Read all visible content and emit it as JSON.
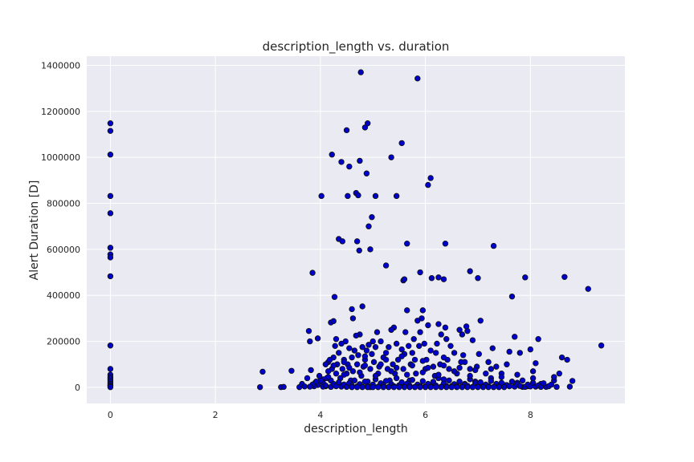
{
  "chart_data": {
    "type": "scatter",
    "title": "description_length vs. duration",
    "xlabel": "description_length",
    "ylabel": "Alert Duration [D]",
    "xlim": [
      -0.45,
      9.8
    ],
    "ylim": [
      -70000,
      1440000
    ],
    "xticks": [
      0,
      2,
      4,
      6,
      8
    ],
    "xtick_labels": [
      "0",
      "2",
      "4",
      "6",
      "8"
    ],
    "yticks": [
      0,
      200000,
      400000,
      600000,
      800000,
      1000000,
      1200000,
      1400000
    ],
    "ytick_labels": [
      "0",
      "200000",
      "400000",
      "600000",
      "800000",
      "1000000",
      "1200000",
      "1400000"
    ],
    "grid": true,
    "colors": {
      "background": "#eaeaf2",
      "grid": "#ffffff",
      "marker_fill": "#0000cc",
      "marker_edge": "#111111"
    },
    "points": [
      [
        0,
        1148000
      ],
      [
        0,
        1115000
      ],
      [
        0,
        1012000
      ],
      [
        0,
        832000
      ],
      [
        0,
        757000
      ],
      [
        0,
        607000
      ],
      [
        0,
        578000
      ],
      [
        0,
        565000
      ],
      [
        0,
        483000
      ],
      [
        0,
        182000
      ],
      [
        0,
        80000
      ],
      [
        0,
        55000
      ],
      [
        0,
        45000
      ],
      [
        0,
        38000
      ],
      [
        0,
        30000
      ],
      [
        0,
        22000
      ],
      [
        0,
        15000
      ],
      [
        0,
        9000
      ],
      [
        0,
        4000
      ],
      [
        0,
        1000
      ],
      [
        2.85,
        1000
      ],
      [
        2.9,
        68000
      ],
      [
        3.25,
        1000
      ],
      [
        3.3,
        2000
      ],
      [
        3.45,
        72000
      ],
      [
        3.6,
        1000
      ],
      [
        3.65,
        15000
      ],
      [
        3.7,
        4000
      ],
      [
        3.75,
        40000
      ],
      [
        3.78,
        245000
      ],
      [
        3.8,
        200000
      ],
      [
        3.82,
        75000
      ],
      [
        3.85,
        498000
      ],
      [
        3.9,
        20000
      ],
      [
        3.95,
        213000
      ],
      [
        4.02,
        832000
      ],
      [
        4.05,
        35000
      ],
      [
        4.1,
        5000
      ],
      [
        4.15,
        110000
      ],
      [
        4.2,
        282000
      ],
      [
        4.22,
        1012000
      ],
      [
        4.25,
        288000
      ],
      [
        4.27,
        393000
      ],
      [
        4.3,
        210000
      ],
      [
        4.35,
        645000
      ],
      [
        4.4,
        980000
      ],
      [
        4.42,
        635000
      ],
      [
        4.5,
        1118000
      ],
      [
        4.52,
        832000
      ],
      [
        4.55,
        960000
      ],
      [
        4.6,
        340000
      ],
      [
        4.62,
        300000
      ],
      [
        4.68,
        845000
      ],
      [
        4.7,
        635000
      ],
      [
        4.72,
        835000
      ],
      [
        4.74,
        595000
      ],
      [
        4.75,
        985000
      ],
      [
        4.77,
        1370000
      ],
      [
        4.8,
        352000
      ],
      [
        4.85,
        1130000
      ],
      [
        4.88,
        930000
      ],
      [
        4.9,
        1148000
      ],
      [
        4.92,
        700000
      ],
      [
        4.95,
        600000
      ],
      [
        4.98,
        740000
      ],
      [
        5.05,
        832000
      ],
      [
        5.25,
        530000
      ],
      [
        5.35,
        1000000
      ],
      [
        5.45,
        832000
      ],
      [
        5.55,
        1062000
      ],
      [
        5.58,
        465000
      ],
      [
        5.6,
        470000
      ],
      [
        5.65,
        625000
      ],
      [
        5.85,
        1343000
      ],
      [
        5.9,
        500000
      ],
      [
        6.05,
        880000
      ],
      [
        6.1,
        910000
      ],
      [
        6.12,
        475000
      ],
      [
        6.25,
        478000
      ],
      [
        6.35,
        470000
      ],
      [
        6.38,
        625000
      ],
      [
        6.85,
        505000
      ],
      [
        7.0,
        475000
      ],
      [
        7.3,
        615000
      ],
      [
        7.65,
        395000
      ],
      [
        7.9,
        478000
      ],
      [
        8.65,
        480000
      ],
      [
        9.1,
        428000
      ],
      [
        9.35,
        182000
      ],
      [
        8.7,
        120000
      ],
      [
        8.75,
        3000
      ],
      [
        8.6,
        130000
      ],
      [
        8.45,
        30000
      ],
      [
        8.3,
        2000
      ],
      [
        8.2,
        15000
      ],
      [
        8.1,
        105000
      ],
      [
        8.15,
        210000
      ],
      [
        8.05,
        70000
      ],
      [
        8.0,
        165000
      ],
      [
        7.95,
        5000
      ],
      [
        7.85,
        2000
      ],
      [
        7.8,
        150000
      ],
      [
        7.75,
        20000
      ],
      [
        7.7,
        220000
      ],
      [
        7.6,
        155000
      ],
      [
        7.55,
        100000
      ],
      [
        7.5,
        10000
      ],
      [
        7.45,
        60000
      ],
      [
        7.4,
        3000
      ],
      [
        7.35,
        90000
      ],
      [
        7.28,
        170000
      ],
      [
        7.25,
        40000
      ],
      [
        7.2,
        110000
      ],
      [
        7.1,
        5000
      ],
      [
        7.05,
        290000
      ],
      [
        7.02,
        145000
      ],
      [
        6.98,
        90000
      ],
      [
        6.95,
        25000
      ],
      [
        6.9,
        205000
      ],
      [
        6.85,
        80000
      ],
      [
        6.8,
        245000
      ],
      [
        6.78,
        265000
      ],
      [
        6.75,
        15000
      ],
      [
        6.72,
        140000
      ],
      [
        6.7,
        230000
      ],
      [
        6.68,
        110000
      ],
      [
        6.65,
        250000
      ],
      [
        6.6,
        60000
      ],
      [
        6.55,
        150000
      ],
      [
        6.5,
        5000
      ],
      [
        6.48,
        180000
      ],
      [
        6.45,
        80000
      ],
      [
        6.42,
        120000
      ],
      [
        6.4,
        210000
      ],
      [
        6.38,
        260000
      ],
      [
        6.35,
        35000
      ],
      [
        6.3,
        230000
      ],
      [
        6.28,
        100000
      ],
      [
        6.25,
        275000
      ],
      [
        6.22,
        190000
      ],
      [
        6.2,
        150000
      ],
      [
        6.18,
        50000
      ],
      [
        6.15,
        90000
      ],
      [
        6.12,
        10000
      ],
      [
        6.1,
        160000
      ],
      [
        6.05,
        270000
      ],
      [
        6.02,
        120000
      ],
      [
        6.0,
        80000
      ],
      [
        5.98,
        190000
      ],
      [
        5.95,
        335000
      ],
      [
        5.93,
        300000
      ],
      [
        5.9,
        240000
      ],
      [
        5.88,
        180000
      ],
      [
        5.85,
        290000
      ],
      [
        5.82,
        60000
      ],
      [
        5.8,
        120000
      ],
      [
        5.78,
        210000
      ],
      [
        5.75,
        150000
      ],
      [
        5.72,
        100000
      ],
      [
        5.7,
        30000
      ],
      [
        5.68,
        180000
      ],
      [
        5.65,
        335000
      ],
      [
        5.62,
        240000
      ],
      [
        5.6,
        145000
      ],
      [
        5.58,
        80000
      ],
      [
        5.55,
        165000
      ],
      [
        5.5,
        5000
      ],
      [
        5.48,
        120000
      ],
      [
        5.45,
        190000
      ],
      [
        5.42,
        60000
      ],
      [
        5.4,
        260000
      ],
      [
        5.38,
        100000
      ],
      [
        5.35,
        250000
      ],
      [
        5.32,
        30000
      ],
      [
        5.3,
        175000
      ],
      [
        5.28,
        80000
      ],
      [
        5.25,
        150000
      ],
      [
        5.2,
        130000
      ],
      [
        5.18,
        10000
      ],
      [
        5.15,
        200000
      ],
      [
        5.12,
        90000
      ],
      [
        5.1,
        60000
      ],
      [
        5.08,
        240000
      ],
      [
        5.05,
        175000
      ],
      [
        5.02,
        110000
      ],
      [
        5.0,
        200000
      ],
      [
        4.98,
        145000
      ],
      [
        4.95,
        80000
      ],
      [
        4.92,
        185000
      ],
      [
        4.9,
        25000
      ],
      [
        4.88,
        160000
      ],
      [
        4.85,
        120000
      ],
      [
        4.82,
        90000
      ],
      [
        4.8,
        175000
      ],
      [
        4.78,
        50000
      ],
      [
        4.75,
        230000
      ],
      [
        4.72,
        140000
      ],
      [
        4.7,
        100000
      ],
      [
        4.68,
        225000
      ],
      [
        4.65,
        160000
      ],
      [
        4.62,
        70000
      ],
      [
        4.6,
        130000
      ],
      [
        4.58,
        30000
      ],
      [
        4.55,
        170000
      ],
      [
        4.52,
        100000
      ],
      [
        4.5,
        60000
      ],
      [
        4.48,
        200000
      ],
      [
        4.45,
        120000
      ],
      [
        4.42,
        80000
      ],
      [
        4.4,
        190000
      ],
      [
        4.38,
        40000
      ],
      [
        4.35,
        150000
      ],
      [
        4.32,
        100000
      ],
      [
        4.3,
        60000
      ],
      [
        4.28,
        180000
      ],
      [
        4.25,
        130000
      ],
      [
        4.22,
        80000
      ],
      [
        4.2,
        30000
      ],
      [
        4.18,
        120000
      ],
      [
        4.15,
        70000
      ],
      [
        4.12,
        40000
      ],
      [
        4.1,
        100000
      ],
      [
        4.05,
        20000
      ],
      [
        4.0,
        30000
      ],
      [
        3.98,
        50000
      ],
      [
        3.95,
        10000
      ],
      [
        3.92,
        25000
      ],
      [
        3.88,
        5000
      ],
      [
        3.85,
        12000
      ],
      [
        3.8,
        3000
      ],
      [
        4.05,
        3000
      ],
      [
        4.1,
        8000
      ],
      [
        4.2,
        2000
      ],
      [
        4.25,
        15000
      ],
      [
        4.3,
        5000
      ],
      [
        4.35,
        22000
      ],
      [
        4.4,
        3000
      ],
      [
        4.45,
        12000
      ],
      [
        4.5,
        2000
      ],
      [
        4.55,
        18000
      ],
      [
        4.6,
        7000
      ],
      [
        4.65,
        30000
      ],
      [
        4.7,
        4000
      ],
      [
        4.75,
        14000
      ],
      [
        4.8,
        2000
      ],
      [
        4.85,
        25000
      ],
      [
        4.9,
        6000
      ],
      [
        4.95,
        1000
      ],
      [
        5.0,
        12000
      ],
      [
        5.05,
        35000
      ],
      [
        5.1,
        3000
      ],
      [
        5.15,
        18000
      ],
      [
        5.2,
        8000
      ],
      [
        5.25,
        28000
      ],
      [
        5.3,
        2000
      ],
      [
        5.35,
        14000
      ],
      [
        5.4,
        5000
      ],
      [
        5.45,
        40000
      ],
      [
        5.5,
        9000
      ],
      [
        5.55,
        22000
      ],
      [
        5.6,
        3000
      ],
      [
        5.65,
        16000
      ],
      [
        5.7,
        7000
      ],
      [
        5.75,
        32000
      ],
      [
        5.8,
        2000
      ],
      [
        5.85,
        12000
      ],
      [
        5.9,
        6000
      ],
      [
        5.95,
        27000
      ],
      [
        6.0,
        4000
      ],
      [
        6.05,
        15000
      ],
      [
        6.1,
        2000
      ],
      [
        6.15,
        24000
      ],
      [
        6.2,
        8000
      ],
      [
        6.25,
        40000
      ],
      [
        6.3,
        3000
      ],
      [
        6.35,
        17000
      ],
      [
        6.4,
        6000
      ],
      [
        6.45,
        30000
      ],
      [
        6.5,
        2000
      ],
      [
        6.55,
        14000
      ],
      [
        6.6,
        5000
      ],
      [
        6.65,
        25000
      ],
      [
        6.7,
        3000
      ],
      [
        6.75,
        12000
      ],
      [
        6.8,
        7000
      ],
      [
        6.85,
        35000
      ],
      [
        6.9,
        2000
      ],
      [
        6.95,
        18000
      ],
      [
        7.0,
        5000
      ],
      [
        7.05,
        22000
      ],
      [
        7.1,
        3000
      ],
      [
        7.15,
        12000
      ],
      [
        7.2,
        6000
      ],
      [
        7.25,
        28000
      ],
      [
        7.3,
        2000
      ],
      [
        7.35,
        15000
      ],
      [
        7.4,
        4000
      ],
      [
        7.45,
        20000
      ],
      [
        7.5,
        2000
      ],
      [
        7.55,
        10000
      ],
      [
        7.6,
        5000
      ],
      [
        7.65,
        25000
      ],
      [
        7.7,
        3000
      ],
      [
        7.75,
        14000
      ],
      [
        7.8,
        6000
      ],
      [
        7.85,
        30000
      ],
      [
        7.9,
        2000
      ],
      [
        7.95,
        12000
      ],
      [
        8.0,
        4000
      ],
      [
        8.05,
        20000
      ],
      [
        8.1,
        3000
      ],
      [
        8.15,
        8000
      ],
      [
        8.2,
        2000
      ],
      [
        8.25,
        18000
      ],
      [
        8.35,
        5000
      ],
      [
        8.4,
        12000
      ],
      [
        8.5,
        2000
      ],
      [
        8.55,
        60000
      ],
      [
        8.8,
        28000
      ],
      [
        8.45,
        45000
      ],
      [
        4.6,
        1000
      ],
      [
        4.7,
        1000
      ],
      [
        4.8,
        1000
      ],
      [
        4.9,
        1000
      ],
      [
        5.0,
        1000
      ],
      [
        5.1,
        1000
      ],
      [
        5.2,
        1000
      ],
      [
        5.3,
        1000
      ],
      [
        5.4,
        1000
      ],
      [
        5.5,
        1000
      ],
      [
        5.6,
        1000
      ],
      [
        5.7,
        1000
      ],
      [
        5.8,
        1000
      ],
      [
        5.9,
        1000
      ],
      [
        6.0,
        1000
      ],
      [
        6.1,
        1000
      ],
      [
        6.2,
        1000
      ],
      [
        6.3,
        1000
      ],
      [
        6.4,
        1000
      ],
      [
        6.5,
        1000
      ],
      [
        6.6,
        1000
      ],
      [
        6.7,
        1000
      ],
      [
        6.8,
        1000
      ],
      [
        6.9,
        1000
      ],
      [
        7.0,
        1000
      ],
      [
        7.1,
        1000
      ],
      [
        7.2,
        1000
      ],
      [
        7.3,
        1000
      ],
      [
        7.4,
        1000
      ],
      [
        7.5,
        1000
      ],
      [
        4.15,
        45000
      ],
      [
        4.45,
        55000
      ],
      [
        4.75,
        65000
      ],
      [
        5.05,
        50000
      ],
      [
        5.35,
        70000
      ],
      [
        5.65,
        55000
      ],
      [
        5.95,
        65000
      ],
      [
        6.25,
        55000
      ],
      [
        6.55,
        70000
      ],
      [
        6.85,
        50000
      ],
      [
        7.15,
        60000
      ],
      [
        7.45,
        45000
      ],
      [
        7.75,
        55000
      ],
      [
        8.05,
        40000
      ],
      [
        4.25,
        95000
      ],
      [
        4.55,
        85000
      ],
      [
        4.85,
        95000
      ],
      [
        5.15,
        100000
      ],
      [
        5.45,
        85000
      ],
      [
        5.75,
        95000
      ],
      [
        6.05,
        85000
      ],
      [
        6.35,
        95000
      ],
      [
        6.65,
        85000
      ],
      [
        6.95,
        75000
      ],
      [
        7.25,
        80000
      ],
      [
        4.45,
        110000
      ],
      [
        4.85,
        135000
      ],
      [
        5.25,
        120000
      ],
      [
        5.55,
        135000
      ],
      [
        5.95,
        115000
      ],
      [
        6.35,
        130000
      ],
      [
        6.75,
        110000
      ]
    ]
  }
}
